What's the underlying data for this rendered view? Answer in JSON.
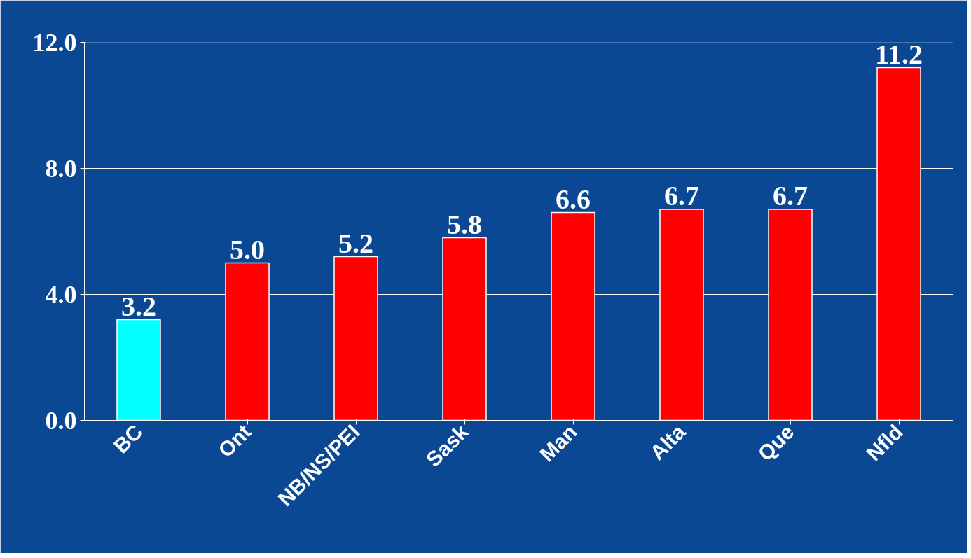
{
  "chart_data": {
    "type": "bar",
    "categories": [
      "BC",
      "Ont",
      "NB/NS/PEI",
      "Sask",
      "Man",
      "Alta",
      "Que",
      "Nfld"
    ],
    "values": [
      3.2,
      5.0,
      5.2,
      5.8,
      6.6,
      6.7,
      6.7,
      11.2
    ],
    "colors": [
      "#00ffff",
      "#ff0000",
      "#ff0000",
      "#ff0000",
      "#ff0000",
      "#ff0000",
      "#ff0000",
      "#ff0000"
    ],
    "value_labels": [
      "3.2",
      "5.0",
      "5.2",
      "5.8",
      "6.6",
      "6.7",
      "6.7",
      "11.2"
    ],
    "ylim": [
      0,
      12
    ],
    "yticks": [
      {
        "value": 0,
        "label": "0.0"
      },
      {
        "value": 4,
        "label": "4.0"
      },
      {
        "value": 8,
        "label": "8.0"
      },
      {
        "value": 12,
        "label": "12.0"
      }
    ],
    "grid": "y"
  }
}
